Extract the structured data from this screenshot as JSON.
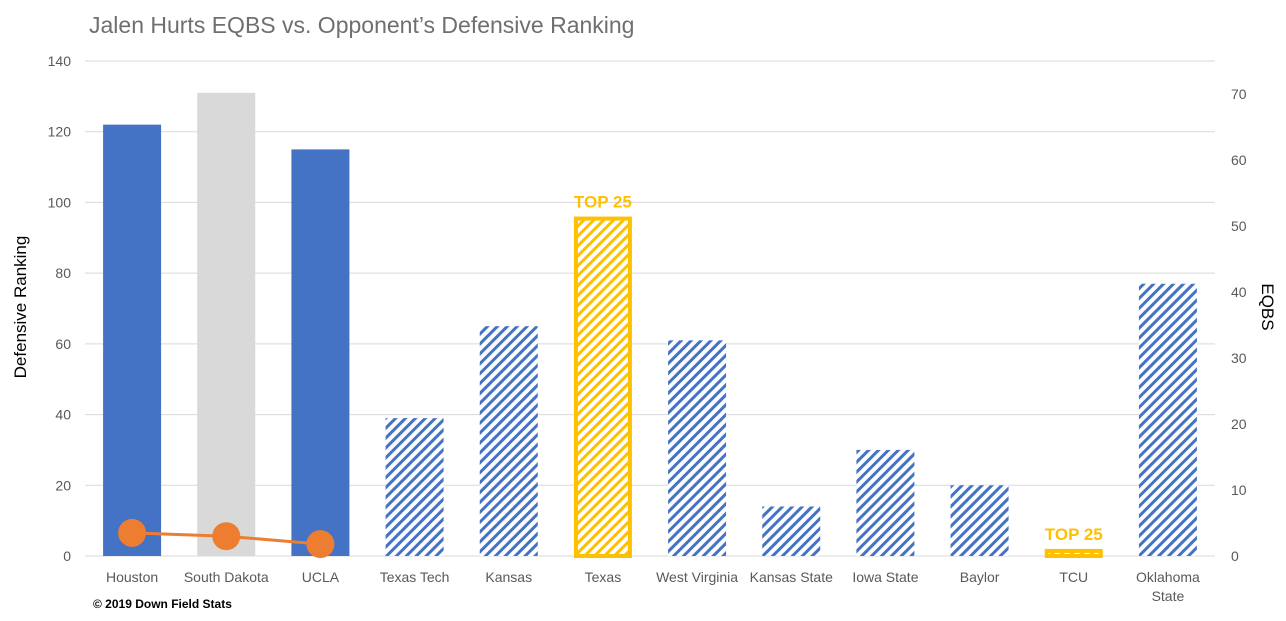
{
  "chart_data": {
    "type": "bar",
    "title": "Jalen Hurts EQBS vs. Opponent’s Defensive Ranking",
    "ylabel": "Defensive  Ranking",
    "y2label": "EQBS",
    "ylim": [
      0,
      140
    ],
    "y2lim": [
      0,
      75
    ],
    "yticks": [
      "0",
      "20",
      "40",
      "60",
      "80",
      "100",
      "120",
      "140"
    ],
    "y2ticks": [
      "0",
      "10",
      "20",
      "30",
      "40",
      "50",
      "60",
      "70"
    ],
    "grid": true,
    "categories": [
      [
        "Houston"
      ],
      [
        "South Dakota"
      ],
      [
        "UCLA"
      ],
      [
        "Texas Tech"
      ],
      [
        "Kansas"
      ],
      [
        "Texas"
      ],
      [
        "West Virginia"
      ],
      [
        "Kansas State"
      ],
      [
        "Iowa State"
      ],
      [
        "Baylor"
      ],
      [
        "TCU"
      ],
      [
        "Oklahoma",
        "State"
      ]
    ],
    "series": [
      {
        "type": "bar",
        "axis": "left",
        "values": [
          122,
          131,
          115,
          39,
          65,
          96,
          61,
          14,
          30,
          20,
          2,
          77
        ],
        "styles": [
          "solid",
          "solid-gray",
          "solid",
          "hatched",
          "hatched",
          "hatched-top25",
          "hatched",
          "hatched",
          "hatched",
          "hatched",
          "hatched-top25",
          "hatched"
        ]
      },
      {
        "type": "line",
        "axis": "right",
        "values": [
          3.5,
          3.0,
          1.8,
          null,
          null,
          null,
          null,
          null,
          null,
          null,
          null,
          null
        ]
      }
    ],
    "annotations": [
      {
        "text": "TOP 25",
        "category_index": 5
      },
      {
        "text": "TOP 25",
        "category_index": 10
      }
    ],
    "colors": {
      "blue": "#4472c4",
      "gray": "#d9d9d9",
      "gold": "#ffc000",
      "orange": "#ed7d31",
      "grid": "#d9d9d9"
    }
  },
  "footer": "© 2019  Down Field Stats"
}
